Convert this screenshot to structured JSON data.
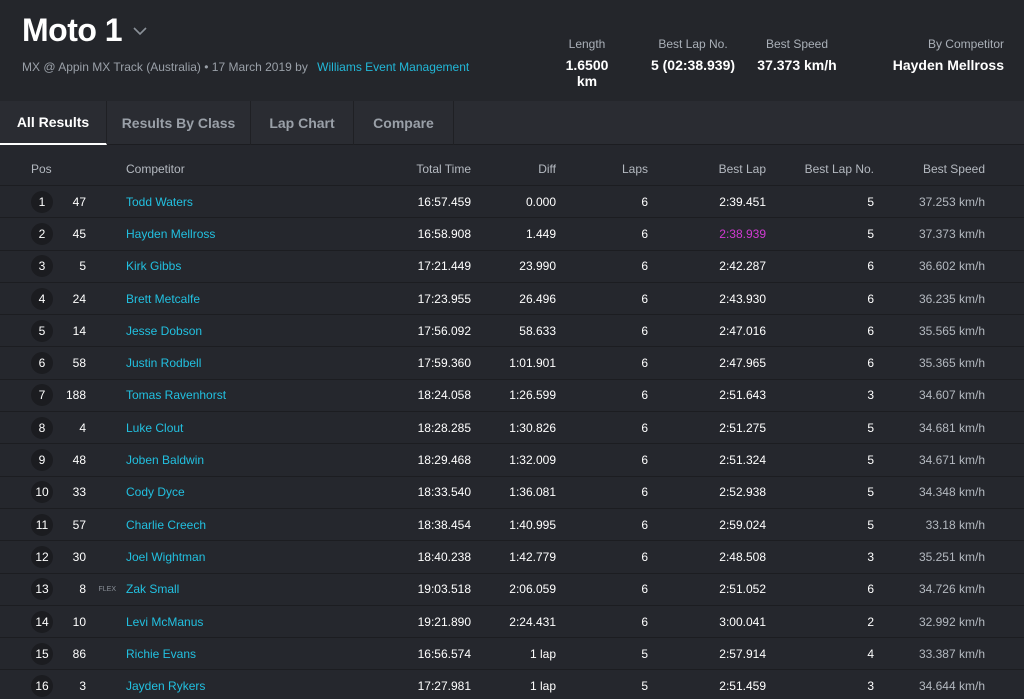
{
  "header": {
    "title": "Moto 1",
    "subtitle": "MX @ Appin MX Track (Australia) • 17 March 2019 by",
    "organizer": "Williams Event Management",
    "stats": [
      {
        "label": "Length",
        "value": "1.6500 km"
      },
      {
        "label": "Best Lap No.",
        "value": "5 (02:38.939)"
      },
      {
        "label": "Best Speed",
        "value": "37.373 km/h"
      },
      {
        "label": "By Competitor",
        "value": "Hayden Mellross"
      }
    ]
  },
  "tabs": [
    "All Results",
    "Results By Class",
    "Lap Chart",
    "Compare"
  ],
  "active_tab": "All Results",
  "columns": {
    "pos": "Pos",
    "competitor": "Competitor",
    "total_time": "Total Time",
    "diff": "Diff",
    "laps": "Laps",
    "best_lap": "Best Lap",
    "best_lap_no": "Best Lap No.",
    "best_speed": "Best Speed"
  },
  "highlight_color": "#d13bd3",
  "rows": [
    {
      "pos": "1",
      "num": "47",
      "tag": "",
      "name": "Todd Waters",
      "total": "16:57.459",
      "diff": "0.000",
      "laps": "6",
      "best": "2:39.451",
      "bln": "5",
      "speed": "37.253 km/h",
      "hl": false
    },
    {
      "pos": "2",
      "num": "45",
      "tag": "",
      "name": "Hayden Mellross",
      "total": "16:58.908",
      "diff": "1.449",
      "laps": "6",
      "best": "2:38.939",
      "bln": "5",
      "speed": "37.373 km/h",
      "hl": true
    },
    {
      "pos": "3",
      "num": "5",
      "tag": "",
      "name": "Kirk Gibbs",
      "total": "17:21.449",
      "diff": "23.990",
      "laps": "6",
      "best": "2:42.287",
      "bln": "6",
      "speed": "36.602 km/h",
      "hl": false
    },
    {
      "pos": "4",
      "num": "24",
      "tag": "",
      "name": "Brett Metcalfe",
      "total": "17:23.955",
      "diff": "26.496",
      "laps": "6",
      "best": "2:43.930",
      "bln": "6",
      "speed": "36.235 km/h",
      "hl": false
    },
    {
      "pos": "5",
      "num": "14",
      "tag": "",
      "name": "Jesse Dobson",
      "total": "17:56.092",
      "diff": "58.633",
      "laps": "6",
      "best": "2:47.016",
      "bln": "6",
      "speed": "35.565 km/h",
      "hl": false
    },
    {
      "pos": "6",
      "num": "58",
      "tag": "",
      "name": "Justin Rodbell",
      "total": "17:59.360",
      "diff": "1:01.901",
      "laps": "6",
      "best": "2:47.965",
      "bln": "6",
      "speed": "35.365 km/h",
      "hl": false
    },
    {
      "pos": "7",
      "num": "188",
      "tag": "",
      "name": "Tomas Ravenhorst",
      "total": "18:24.058",
      "diff": "1:26.599",
      "laps": "6",
      "best": "2:51.643",
      "bln": "3",
      "speed": "34.607 km/h",
      "hl": false
    },
    {
      "pos": "8",
      "num": "4",
      "tag": "",
      "name": "Luke Clout",
      "total": "18:28.285",
      "diff": "1:30.826",
      "laps": "6",
      "best": "2:51.275",
      "bln": "5",
      "speed": "34.681 km/h",
      "hl": false
    },
    {
      "pos": "9",
      "num": "48",
      "tag": "",
      "name": "Joben Baldwin",
      "total": "18:29.468",
      "diff": "1:32.009",
      "laps": "6",
      "best": "2:51.324",
      "bln": "5",
      "speed": "34.671 km/h",
      "hl": false
    },
    {
      "pos": "10",
      "num": "33",
      "tag": "",
      "name": "Cody Dyce",
      "total": "18:33.540",
      "diff": "1:36.081",
      "laps": "6",
      "best": "2:52.938",
      "bln": "5",
      "speed": "34.348 km/h",
      "hl": false
    },
    {
      "pos": "11",
      "num": "57",
      "tag": "",
      "name": "Charlie Creech",
      "total": "18:38.454",
      "diff": "1:40.995",
      "laps": "6",
      "best": "2:59.024",
      "bln": "5",
      "speed": "33.18 km/h",
      "hl": false
    },
    {
      "pos": "12",
      "num": "30",
      "tag": "",
      "name": "Joel Wightman",
      "total": "18:40.238",
      "diff": "1:42.779",
      "laps": "6",
      "best": "2:48.508",
      "bln": "3",
      "speed": "35.251 km/h",
      "hl": false
    },
    {
      "pos": "13",
      "num": "8",
      "tag": "FLEX",
      "name": "Zak Small",
      "total": "19:03.518",
      "diff": "2:06.059",
      "laps": "6",
      "best": "2:51.052",
      "bln": "6",
      "speed": "34.726 km/h",
      "hl": false
    },
    {
      "pos": "14",
      "num": "10",
      "tag": "",
      "name": "Levi McManus",
      "total": "19:21.890",
      "diff": "2:24.431",
      "laps": "6",
      "best": "3:00.041",
      "bln": "2",
      "speed": "32.992 km/h",
      "hl": false
    },
    {
      "pos": "15",
      "num": "86",
      "tag": "",
      "name": "Richie Evans",
      "total": "16:56.574",
      "diff": "1 lap",
      "laps": "5",
      "best": "2:57.914",
      "bln": "4",
      "speed": "33.387 km/h",
      "hl": false
    },
    {
      "pos": "16",
      "num": "3",
      "tag": "",
      "name": "Jayden Rykers",
      "total": "17:27.981",
      "diff": "1 lap",
      "laps": "5",
      "best": "2:51.459",
      "bln": "3",
      "speed": "34.644 km/h",
      "hl": false
    }
  ]
}
